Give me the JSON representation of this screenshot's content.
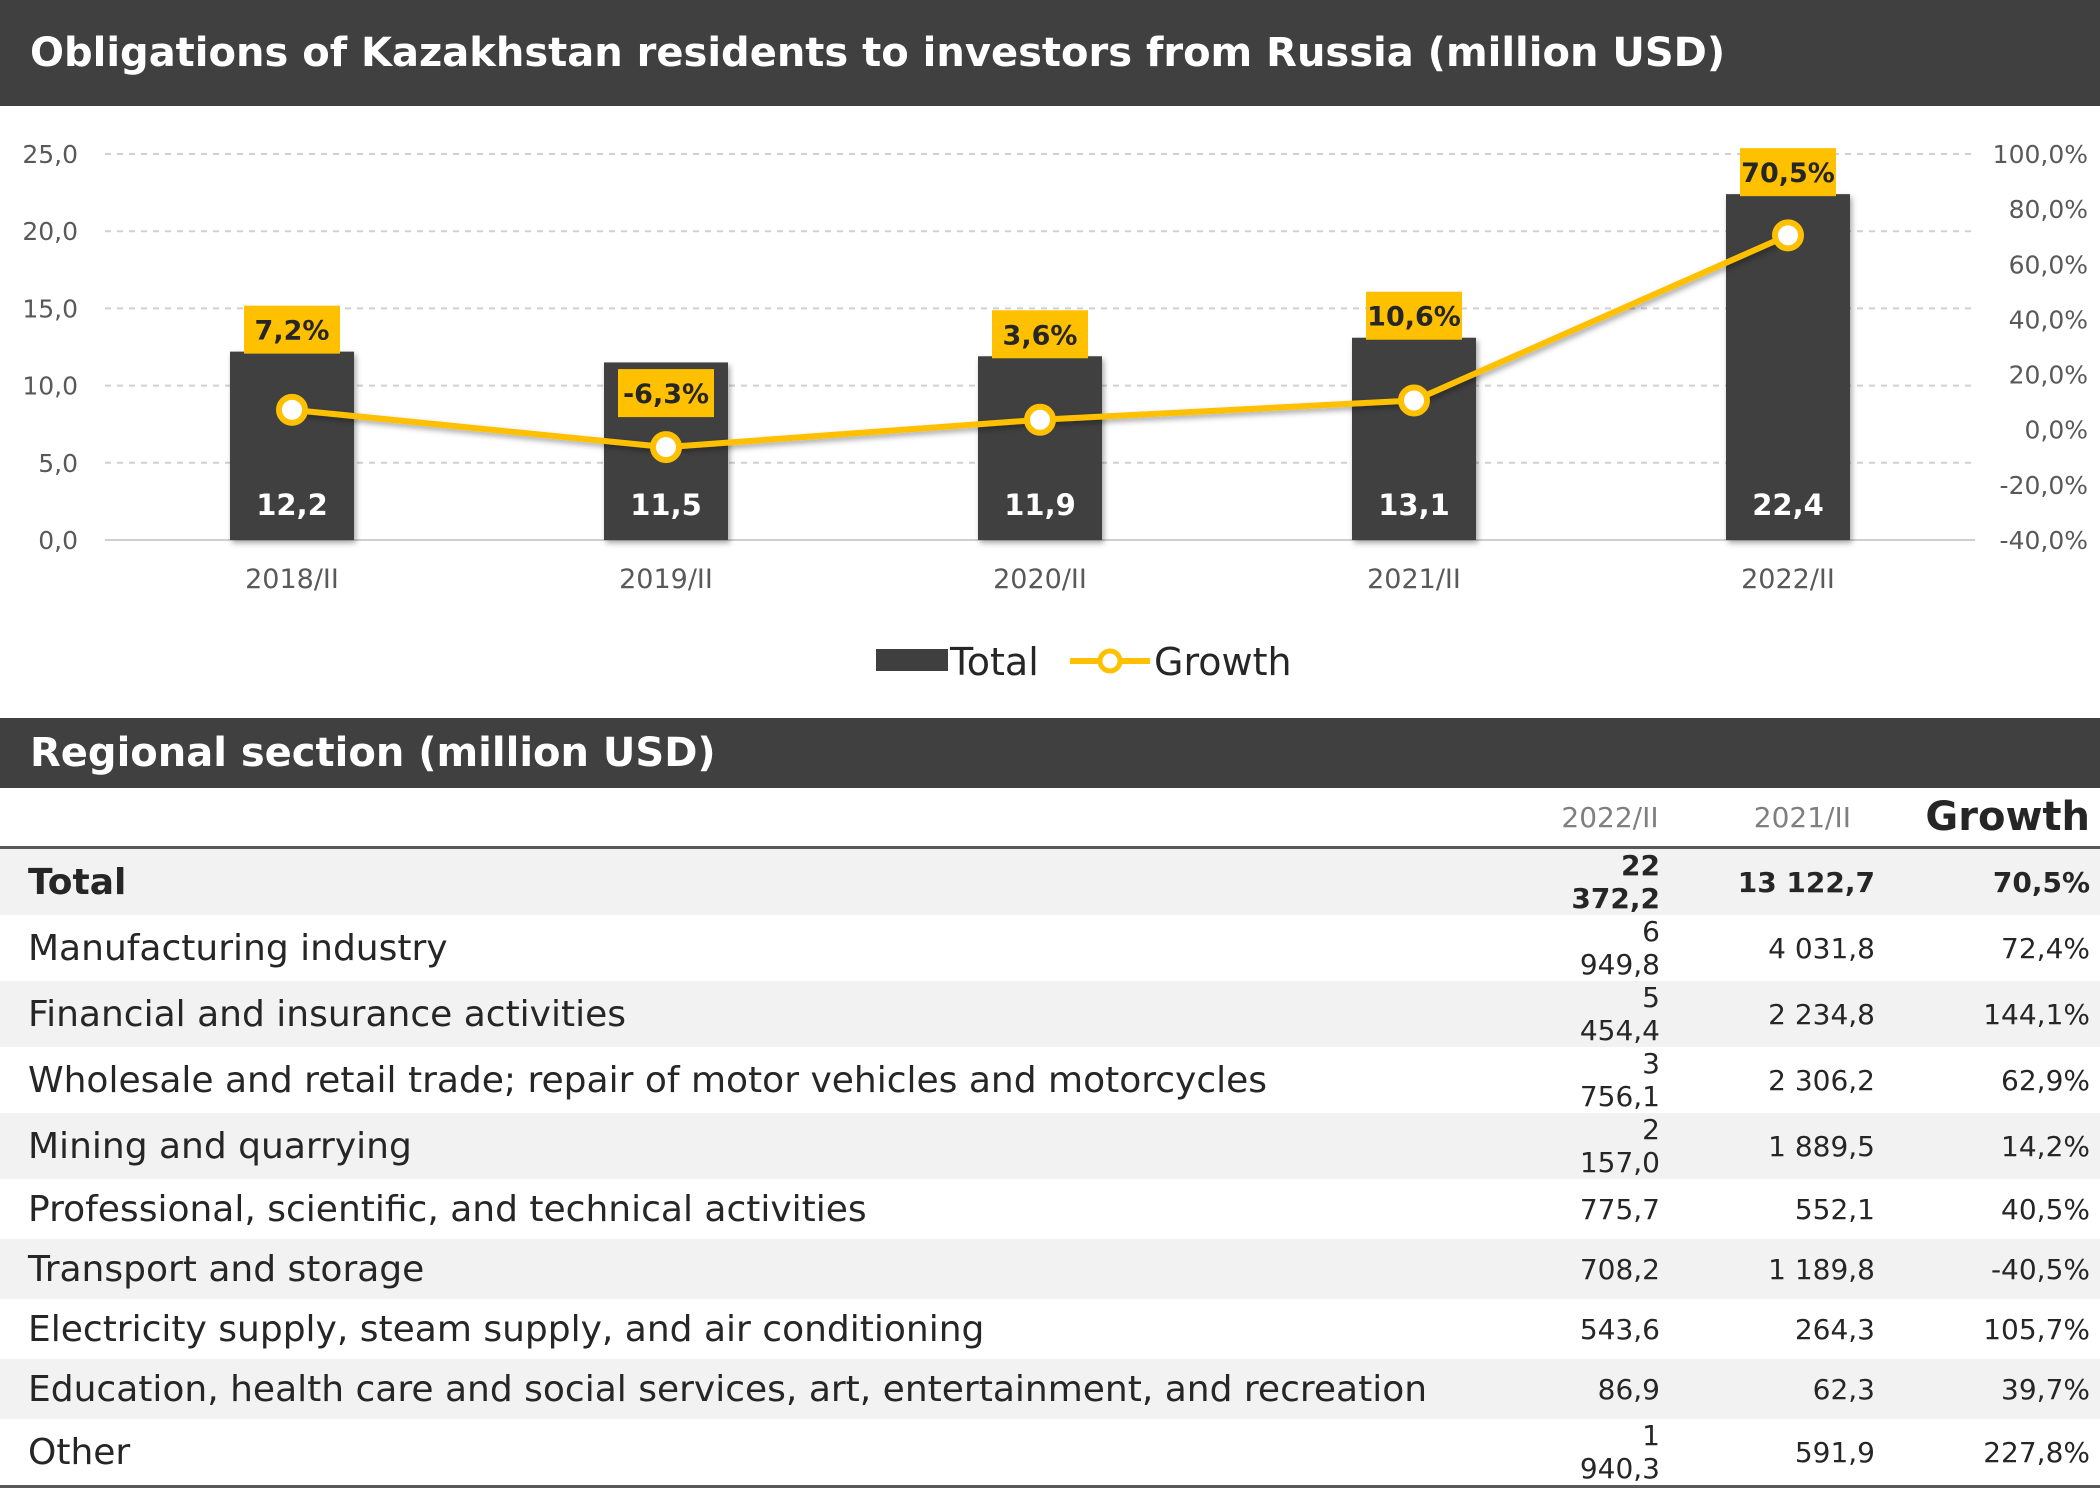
{
  "header": {
    "chart_title": "Obligations of Kazakhstan residents to investors from Russia (million USD)",
    "table_title": "Regional section (million USD)"
  },
  "chart_data": {
    "type": "bar",
    "title": "Obligations of Kazakhstan residents to investors from Russia (million USD)",
    "categories": [
      "2018/II",
      "2019/II",
      "2020/II",
      "2021/II",
      "2022/II"
    ],
    "series": [
      {
        "name": "Total",
        "type": "bar",
        "axis": "left",
        "color": "#3f3f3f",
        "values": [
          12.2,
          11.5,
          11.9,
          13.1,
          22.4
        ],
        "labels": [
          "12,2",
          "11,5",
          "11,9",
          "13,1",
          "22,4"
        ]
      },
      {
        "name": "Growth",
        "type": "line",
        "axis": "right",
        "color": "#ffc000",
        "values": [
          7.2,
          -6.3,
          3.6,
          10.6,
          70.5
        ],
        "labels": [
          "7,2%",
          "-6,3%",
          "3,6%",
          "10,6%",
          "70,5%"
        ]
      }
    ],
    "y_left": {
      "ylim": [
        0,
        25
      ],
      "ticks": [
        0,
        5,
        10,
        15,
        20,
        25
      ],
      "tick_labels": [
        "0,0",
        "5,0",
        "10,0",
        "15,0",
        "20,0",
        "25,0"
      ]
    },
    "y_right": {
      "ylim": [
        -40,
        100
      ],
      "ticks": [
        -40,
        -20,
        0,
        20,
        40,
        60,
        80,
        100
      ],
      "tick_labels": [
        "-40,0%",
        "-20,0%",
        "0,0%",
        "20,0%",
        "40,0%",
        "60,0%",
        "80,0%",
        "100,0%"
      ]
    },
    "grid": true,
    "legend": "bottom-center"
  },
  "table": {
    "columns": [
      "2022/II",
      "2021/II",
      "Growth"
    ],
    "rows": [
      {
        "name": "Total",
        "v2022": "22 372,2",
        "v2021": "13 122,7",
        "growth": "70,5%",
        "bold": true
      },
      {
        "name": "Manufacturing industry",
        "v2022": "6 949,8",
        "v2021": "4 031,8",
        "growth": "72,4%"
      },
      {
        "name": "Financial and insurance activities",
        "v2022": "5 454,4",
        "v2021": "2 234,8",
        "growth": "144,1%"
      },
      {
        "name": "Wholesale and retail trade; repair of motor vehicles and motorcycles",
        "v2022": "3 756,1",
        "v2021": "2 306,2",
        "growth": "62,9%"
      },
      {
        "name": "Mining and quarrying",
        "v2022": "2 157,0",
        "v2021": "1 889,5",
        "growth": "14,2%"
      },
      {
        "name": "Professional, scientific, and technical activities",
        "v2022": "775,7",
        "v2021": "552,1",
        "growth": "40,5%"
      },
      {
        "name": "Transport and storage",
        "v2022": "708,2",
        "v2021": "1 189,8",
        "growth": "-40,5%"
      },
      {
        "name": "Electricity supply, steam supply, and air conditioning",
        "v2022": "543,6",
        "v2021": "264,3",
        "growth": "105,7%"
      },
      {
        "name": "Education, health care and social services, art, entertainment, and recreation",
        "v2022": "86,9",
        "v2021": "62,3",
        "growth": "39,7%"
      },
      {
        "name": "Other",
        "v2022": "1 940,3",
        "v2021": "591,9",
        "growth": "227,8%"
      }
    ]
  }
}
